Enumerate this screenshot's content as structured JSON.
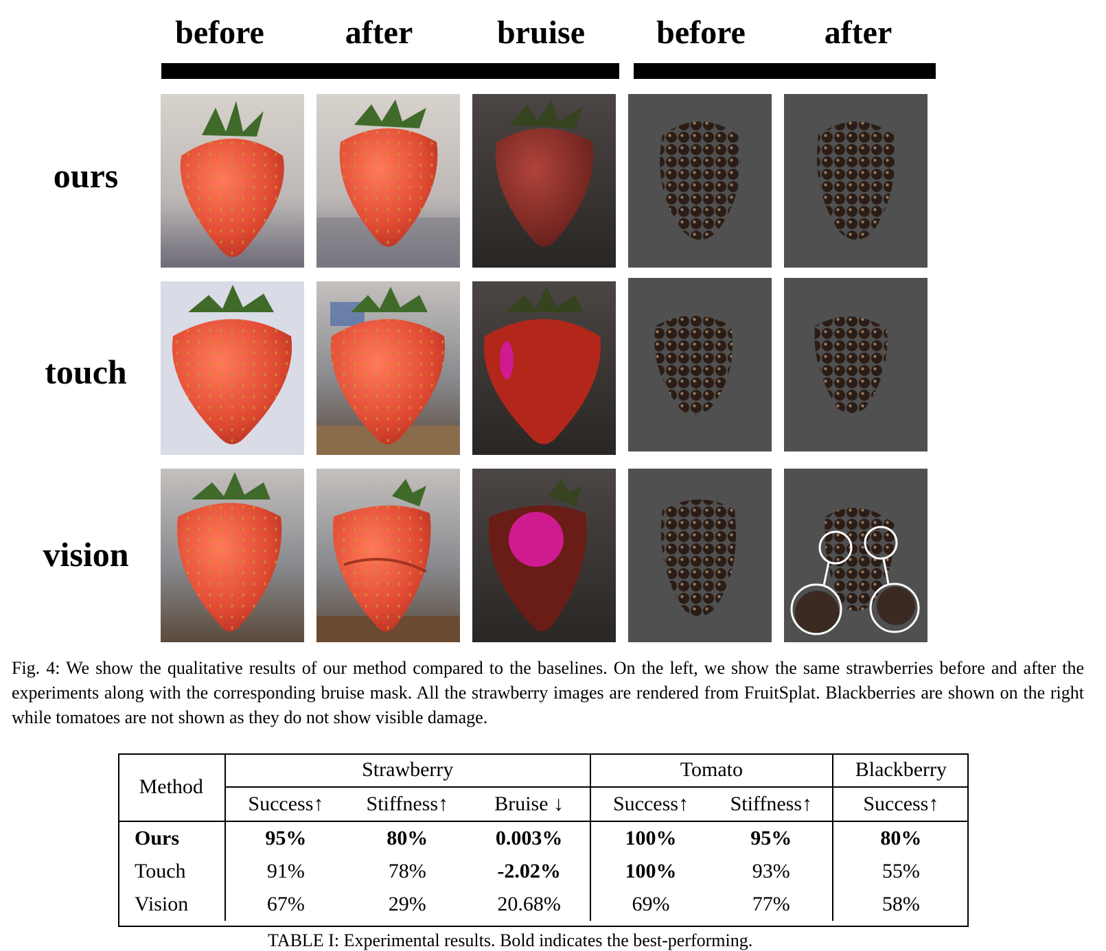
{
  "figure": {
    "column_headers": [
      "before",
      "after",
      "bruise",
      "before",
      "after"
    ],
    "row_labels": [
      "ours",
      "touch",
      "vision"
    ],
    "colors": {
      "strawberry": "#e04a33",
      "strawberry_dark": "#8e2a22",
      "bruise_mask": "#d01a90",
      "blackberry_bg": "#505050",
      "blackberry": "#2a1a14",
      "highlight_circle": "#ffffff"
    }
  },
  "caption": "Fig. 4: We show the qualitative results of our method compared to the baselines. On the left, we show the same strawberries before and after the experiments along with the corresponding bruise mask. All the strawberry images are rendered from FruitSplat. Blackberries are shown on the right while tomatoes are not shown as they do not show visible damage.",
  "table": {
    "method_header": "Method",
    "groups": [
      "Strawberry",
      "Tomato",
      "Blackberry"
    ],
    "subheaders": [
      "Success↑",
      "Stiffness↑",
      "Bruise ↓",
      "Success↑",
      "Stiffness↑",
      "Success↑"
    ],
    "rows": [
      {
        "method": "Ours",
        "values": [
          "95%",
          "80%",
          "0.003%",
          "100%",
          "95%",
          "80%"
        ]
      },
      {
        "method": "Touch",
        "values": [
          "91%",
          "78%",
          "-2.02%",
          "100%",
          "93%",
          "55%"
        ]
      },
      {
        "method": "Vision",
        "values": [
          "67%",
          "29%",
          "20.68%",
          "69%",
          "77%",
          "58%"
        ]
      }
    ]
  },
  "table_caption_partial": "TABLE I: Experimental results. Bold indicates the best-performing."
}
